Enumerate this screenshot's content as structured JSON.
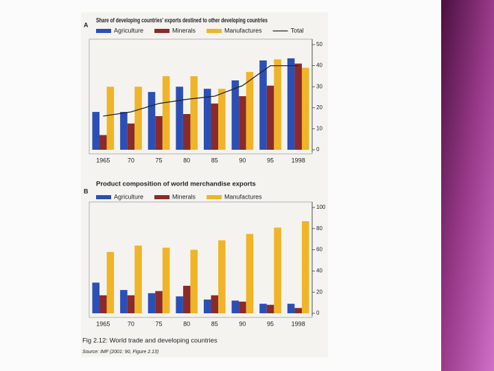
{
  "chart_data": [
    {
      "type": "bar",
      "panel_label": "A",
      "title": "Share of developing countries' exports destined to other developing countries",
      "categories": [
        "1965",
        "70",
        "75",
        "80",
        "85",
        "90",
        "95",
        "1998"
      ],
      "series": [
        {
          "name": "Agriculture",
          "color": "#2b4fb5",
          "values": [
            18,
            18,
            27.5,
            30,
            29,
            33,
            42.5,
            43.5
          ]
        },
        {
          "name": "Minerals",
          "color": "#8b2a2a",
          "values": [
            7,
            12.5,
            16,
            17,
            22,
            25.5,
            30.5,
            41
          ]
        },
        {
          "name": "Manufactures",
          "color": "#f0b428",
          "values": [
            30,
            30,
            35,
            35,
            29,
            37,
            43,
            39
          ]
        },
        {
          "name": "Total",
          "color": "#222222",
          "mark": "line",
          "values": [
            16,
            18,
            22,
            24,
            25.5,
            30.5,
            40,
            40
          ]
        }
      ],
      "ylim": [
        0,
        50
      ],
      "yticks": [
        0,
        10,
        20,
        30,
        40,
        50
      ],
      "yaxis_side": "right",
      "grid": false,
      "legend": "top"
    },
    {
      "type": "bar",
      "panel_label": "B",
      "title": "Product composition of world merchandise exports",
      "categories": [
        "1965",
        "70",
        "75",
        "80",
        "85",
        "90",
        "95",
        "1998"
      ],
      "series": [
        {
          "name": "Agriculture",
          "color": "#2b4fb5",
          "values": [
            29,
            22,
            19,
            16,
            13,
            12,
            9,
            9
          ]
        },
        {
          "name": "Minerals",
          "color": "#8b2a2a",
          "values": [
            17,
            17,
            21,
            26,
            17,
            11,
            8,
            5
          ]
        },
        {
          "name": "Manufactures",
          "color": "#f0b428",
          "values": [
            58,
            64,
            62,
            60,
            69,
            75,
            81,
            87
          ]
        }
      ],
      "ylim": [
        0,
        100
      ],
      "yticks": [
        0,
        20,
        40,
        60,
        80,
        100
      ],
      "yaxis_side": "right",
      "grid": false,
      "legend": "top"
    }
  ],
  "caption": "Fig 2.12: World trade and developing countries",
  "source": "Source: IMF (2001: 90, Figure 2.13)"
}
